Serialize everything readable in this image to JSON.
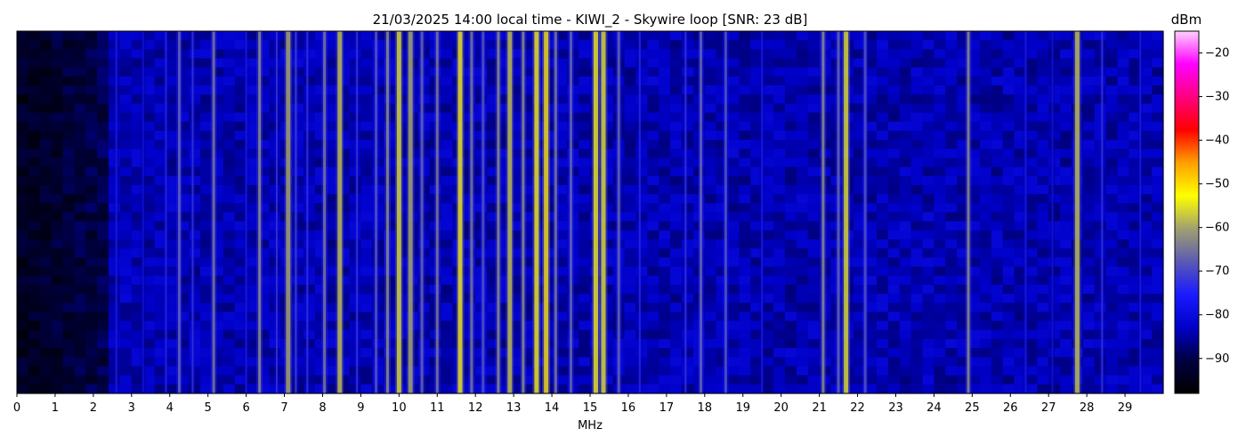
{
  "chart_data": {
    "type": "heatmap",
    "title": "21/03/2025 14:00 local time - KIWI_2 - Skywire loop [SNR: 23 dB]",
    "xlabel": "MHz",
    "ylabel": "",
    "x_unit": "MHz",
    "xlim": [
      0,
      30
    ],
    "x_ticks": [
      0,
      1,
      2,
      3,
      4,
      5,
      6,
      7,
      8,
      9,
      10,
      11,
      12,
      13,
      14,
      15,
      16,
      17,
      18,
      19,
      20,
      21,
      22,
      23,
      24,
      25,
      26,
      27,
      28,
      29
    ],
    "colorbar": {
      "label": "dBm",
      "range": [
        -98,
        -15
      ],
      "ticks": [
        -20,
        -30,
        -40,
        -50,
        -60,
        -70,
        -80,
        -90
      ],
      "colormap": [
        "#000000",
        "#000040",
        "#0000c8",
        "#1a1aff",
        "#5a5ab4",
        "#a0a070",
        "#ffff00",
        "#ffa000",
        "#ff0000",
        "#ff0080",
        "#ff00ff",
        "#ffd0ff"
      ]
    },
    "background_level_dbm": -84,
    "low_band_level_dbm": -94,
    "low_band_range_mhz": [
      0,
      2.5
    ],
    "signals": [
      {
        "freq": 2.6,
        "dbm": -74
      },
      {
        "freq": 3.3,
        "dbm": -76
      },
      {
        "freq": 3.9,
        "dbm": -72
      },
      {
        "freq": 4.25,
        "dbm": -64
      },
      {
        "freq": 4.6,
        "dbm": -70
      },
      {
        "freq": 5.15,
        "dbm": -62
      },
      {
        "freq": 6.0,
        "dbm": -74
      },
      {
        "freq": 6.35,
        "dbm": -60
      },
      {
        "freq": 6.8,
        "dbm": -70
      },
      {
        "freq": 7.1,
        "dbm": -58
      },
      {
        "freq": 7.3,
        "dbm": -68
      },
      {
        "freq": 7.6,
        "dbm": -70
      },
      {
        "freq": 8.05,
        "dbm": -62
      },
      {
        "freq": 8.45,
        "dbm": -56
      },
      {
        "freq": 8.9,
        "dbm": -70
      },
      {
        "freq": 9.4,
        "dbm": -66
      },
      {
        "freq": 9.7,
        "dbm": -60
      },
      {
        "freq": 10.0,
        "dbm": -54
      },
      {
        "freq": 10.3,
        "dbm": -58
      },
      {
        "freq": 10.6,
        "dbm": -64
      },
      {
        "freq": 11.0,
        "dbm": -62
      },
      {
        "freq": 11.6,
        "dbm": -52
      },
      {
        "freq": 11.9,
        "dbm": -62
      },
      {
        "freq": 12.2,
        "dbm": -66
      },
      {
        "freq": 12.6,
        "dbm": -60
      },
      {
        "freq": 12.9,
        "dbm": -56
      },
      {
        "freq": 13.25,
        "dbm": -60
      },
      {
        "freq": 13.6,
        "dbm": -52
      },
      {
        "freq": 13.85,
        "dbm": -50
      },
      {
        "freq": 14.1,
        "dbm": -62
      },
      {
        "freq": 14.5,
        "dbm": -64
      },
      {
        "freq": 15.15,
        "dbm": -52
      },
      {
        "freq": 15.35,
        "dbm": -54
      },
      {
        "freq": 15.75,
        "dbm": -64
      },
      {
        "freq": 16.3,
        "dbm": -72
      },
      {
        "freq": 17.5,
        "dbm": -70
      },
      {
        "freq": 17.9,
        "dbm": -64
      },
      {
        "freq": 18.55,
        "dbm": -66
      },
      {
        "freq": 19.5,
        "dbm": -74
      },
      {
        "freq": 21.1,
        "dbm": -60
      },
      {
        "freq": 21.5,
        "dbm": -64
      },
      {
        "freq": 21.7,
        "dbm": -54
      },
      {
        "freq": 22.2,
        "dbm": -66
      },
      {
        "freq": 24.9,
        "dbm": -60
      },
      {
        "freq": 26.4,
        "dbm": -74
      },
      {
        "freq": 27.1,
        "dbm": -76
      },
      {
        "freq": 27.75,
        "dbm": -56
      },
      {
        "freq": 28.4,
        "dbm": -70
      },
      {
        "freq": 29.4,
        "dbm": -74
      }
    ]
  }
}
